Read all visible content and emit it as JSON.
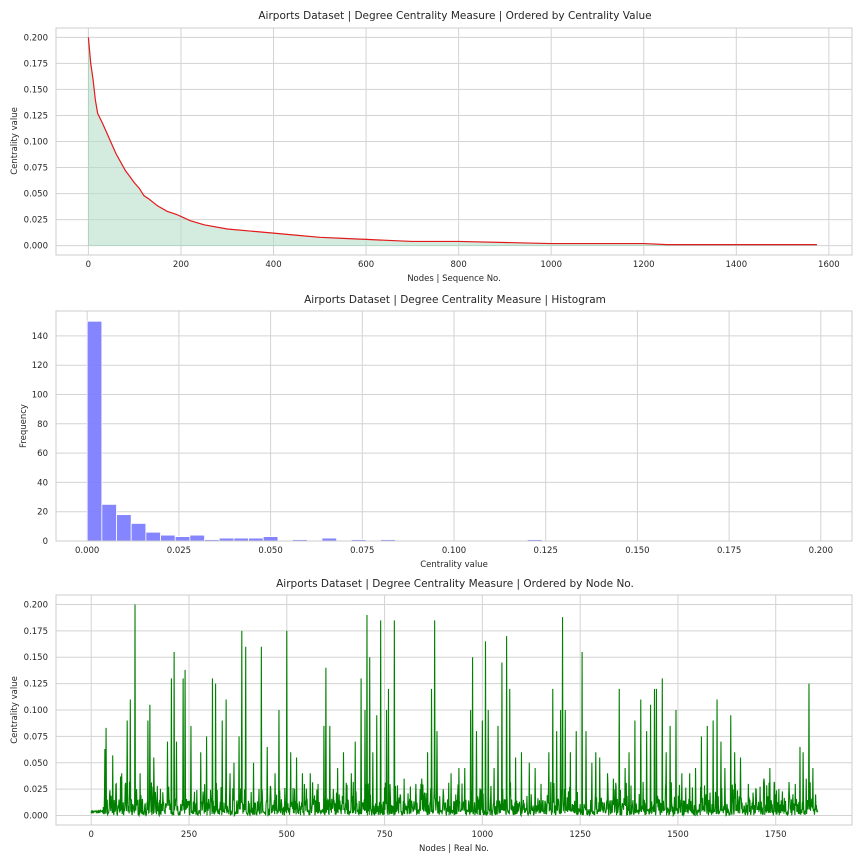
{
  "chart_data": [
    {
      "type": "area",
      "title": "Airports Dataset | Degree Centrality Measure | Ordered by Centrality Value",
      "xlabel": "Nodes | Sequence No.",
      "ylabel": "Centrality value",
      "xlim": [
        -70,
        1650
      ],
      "ylim": [
        -0.009,
        0.209
      ],
      "xticks": [
        "0",
        "200",
        "400",
        "600",
        "800",
        "1000",
        "1200",
        "1400",
        "1600"
      ],
      "yticks": [
        "0.000",
        "0.025",
        "0.050",
        "0.075",
        "0.100",
        "0.125",
        "0.150",
        "0.175",
        "0.200"
      ],
      "grid": true,
      "line_color": "#e31a1c",
      "fill_color": "#b8e0cc",
      "series": [
        {
          "x": [
            0,
            2,
            5,
            10,
            15,
            20,
            30,
            40,
            50,
            60,
            70,
            80,
            90,
            100,
            110,
            120,
            130,
            150,
            170,
            190,
            200,
            220,
            250,
            300,
            350,
            400,
            450,
            500,
            550,
            600,
            700,
            800,
            900,
            1000,
            1050,
            1100,
            1200,
            1250,
            1300,
            1400,
            1500,
            1574
          ],
          "y": [
            0.2,
            0.19,
            0.175,
            0.16,
            0.14,
            0.127,
            0.118,
            0.108,
            0.098,
            0.088,
            0.08,
            0.072,
            0.066,
            0.06,
            0.055,
            0.048,
            0.045,
            0.038,
            0.033,
            0.03,
            0.028,
            0.024,
            0.02,
            0.016,
            0.014,
            0.012,
            0.01,
            0.008,
            0.007,
            0.006,
            0.004,
            0.004,
            0.003,
            0.002,
            0.002,
            0.002,
            0.002,
            0.001,
            0.001,
            0.001,
            0.001,
            0.001
          ]
        }
      ]
    },
    {
      "type": "bar",
      "title": "Airports Dataset | Degree Centrality Measure | Histogram",
      "xlabel": "Centrality value",
      "ylabel": "Frequency",
      "xlim": [
        -0.0085,
        0.2085
      ],
      "ylim": [
        0,
        157
      ],
      "xticks": [
        "0.000",
        "0.025",
        "0.050",
        "0.075",
        "0.100",
        "0.125",
        "0.150",
        "0.175",
        "0.200"
      ],
      "yticks": [
        "0",
        "20",
        "40",
        "60",
        "80",
        "100",
        "120",
        "140"
      ],
      "grid": true,
      "bar_color": "#7b7bff",
      "bin_width": 0.004,
      "bins": [
        0.0,
        0.004,
        0.008,
        0.012,
        0.016,
        0.02,
        0.024,
        0.028,
        0.032,
        0.036,
        0.04,
        0.044,
        0.048,
        0.052,
        0.056,
        0.06,
        0.064,
        0.068,
        0.072,
        0.076,
        0.08,
        0.084,
        0.088,
        0.092,
        0.096,
        0.1,
        0.104,
        0.108,
        0.112,
        0.116,
        0.12,
        0.124,
        0.128,
        0.132,
        0.136,
        0.14,
        0.144,
        0.148,
        0.152,
        0.156,
        0.16,
        0.164,
        0.168,
        0.172,
        0.176,
        0.18,
        0.184,
        0.188,
        0.192,
        0.196
      ],
      "values": [
        150,
        25,
        18,
        12,
        6,
        4,
        3,
        4,
        1,
        2,
        2,
        2,
        3,
        0,
        1,
        0,
        2,
        0,
        1,
        0,
        1,
        0,
        0,
        0,
        0,
        0,
        0,
        0,
        0,
        0,
        1,
        0,
        0,
        0,
        0,
        0,
        0,
        0,
        0,
        0,
        0,
        0,
        0,
        0,
        0,
        0,
        0,
        0,
        0,
        0
      ]
    },
    {
      "type": "line",
      "title": "Airports Dataset | Degree Centrality Measure | Ordered by Node No.",
      "xlabel": "Nodes | Real No.",
      "ylabel": "Centrality value",
      "xlim": [
        -90,
        1945
      ],
      "ylim": [
        -0.009,
        0.209
      ],
      "xticks": [
        "0",
        "250",
        "500",
        "750",
        "1000",
        "1250",
        "1500",
        "1750"
      ],
      "yticks": [
        "0.000",
        "0.025",
        "0.050",
        "0.075",
        "0.100",
        "0.125",
        "0.150",
        "0.175",
        "0.200"
      ],
      "grid": true,
      "line_color": "#008000",
      "x_max": 1858,
      "peaks": [
        [
          35,
          0.063
        ],
        [
          38,
          0.083
        ],
        [
          55,
          0.057
        ],
        [
          75,
          0.037
        ],
        [
          78,
          0.04
        ],
        [
          92,
          0.09
        ],
        [
          100,
          0.11
        ],
        [
          112,
          0.2
        ],
        [
          125,
          0.04
        ],
        [
          145,
          0.09
        ],
        [
          150,
          0.105
        ],
        [
          160,
          0.055
        ],
        [
          195,
          0.07
        ],
        [
          205,
          0.13
        ],
        [
          212,
          0.155
        ],
        [
          218,
          0.07
        ],
        [
          235,
          0.13
        ],
        [
          240,
          0.138
        ],
        [
          255,
          0.085
        ],
        [
          280,
          0.06
        ],
        [
          295,
          0.075
        ],
        [
          310,
          0.13
        ],
        [
          318,
          0.125
        ],
        [
          335,
          0.09
        ],
        [
          345,
          0.11
        ],
        [
          355,
          0.04
        ],
        [
          365,
          0.05
        ],
        [
          378,
          0.075
        ],
        [
          385,
          0.175
        ],
        [
          395,
          0.16
        ],
        [
          415,
          0.05
        ],
        [
          435,
          0.16
        ],
        [
          450,
          0.065
        ],
        [
          470,
          0.04
        ],
        [
          480,
          0.1
        ],
        [
          500,
          0.175
        ],
        [
          510,
          0.06
        ],
        [
          525,
          0.055
        ],
        [
          540,
          0.04
        ],
        [
          560,
          0.04
        ],
        [
          580,
          0.03
        ],
        [
          595,
          0.085
        ],
        [
          600,
          0.14
        ],
        [
          610,
          0.085
        ],
        [
          630,
          0.045
        ],
        [
          645,
          0.06
        ],
        [
          665,
          0.04
        ],
        [
          675,
          0.07
        ],
        [
          690,
          0.13
        ],
        [
          700,
          0.1
        ],
        [
          705,
          0.19
        ],
        [
          712,
          0.15
        ],
        [
          720,
          0.06
        ],
        [
          730,
          0.095
        ],
        [
          740,
          0.185
        ],
        [
          755,
          0.1
        ],
        [
          760,
          0.12
        ],
        [
          775,
          0.185
        ],
        [
          790,
          0.02
        ],
        [
          800,
          0.035
        ],
        [
          810,
          0.02
        ],
        [
          830,
          0.03
        ],
        [
          845,
          0.035
        ],
        [
          860,
          0.06
        ],
        [
          870,
          0.12
        ],
        [
          878,
          0.185
        ],
        [
          884,
          0.08
        ],
        [
          900,
          0.025
        ],
        [
          920,
          0.04
        ],
        [
          940,
          0.045
        ],
        [
          955,
          0.045
        ],
        [
          970,
          0.1
        ],
        [
          975,
          0.15
        ],
        [
          985,
          0.08
        ],
        [
          1000,
          0.09
        ],
        [
          1008,
          0.165
        ],
        [
          1015,
          0.1
        ],
        [
          1030,
          0.045
        ],
        [
          1040,
          0.085
        ],
        [
          1050,
          0.145
        ],
        [
          1062,
          0.17
        ],
        [
          1070,
          0.12
        ],
        [
          1085,
          0.055
        ],
        [
          1100,
          0.06
        ],
        [
          1120,
          0.05
        ],
        [
          1135,
          0.045
        ],
        [
          1150,
          0.03
        ],
        [
          1170,
          0.06
        ],
        [
          1180,
          0.12
        ],
        [
          1190,
          0.08
        ],
        [
          1200,
          0.1
        ],
        [
          1205,
          0.188
        ],
        [
          1212,
          0.1
        ],
        [
          1225,
          0.06
        ],
        [
          1240,
          0.08
        ],
        [
          1255,
          0.155
        ],
        [
          1265,
          0.08
        ],
        [
          1280,
          0.05
        ],
        [
          1290,
          0.06
        ],
        [
          1300,
          0.055
        ],
        [
          1320,
          0.04
        ],
        [
          1335,
          0.035
        ],
        [
          1350,
          0.12
        ],
        [
          1365,
          0.045
        ],
        [
          1375,
          0.06
        ],
        [
          1390,
          0.09
        ],
        [
          1405,
          0.11
        ],
        [
          1420,
          0.08
        ],
        [
          1430,
          0.105
        ],
        [
          1440,
          0.12
        ],
        [
          1445,
          0.12
        ],
        [
          1460,
          0.13
        ],
        [
          1470,
          0.06
        ],
        [
          1480,
          0.085
        ],
        [
          1495,
          0.1
        ],
        [
          1510,
          0.04
        ],
        [
          1530,
          0.04
        ],
        [
          1545,
          0.045
        ],
        [
          1560,
          0.075
        ],
        [
          1575,
          0.085
        ],
        [
          1590,
          0.09
        ],
        [
          1600,
          0.11
        ],
        [
          1610,
          0.07
        ],
        [
          1620,
          0.045
        ],
        [
          1635,
          0.095
        ],
        [
          1645,
          0.06
        ],
        [
          1660,
          0.055
        ],
        [
          1680,
          0.03
        ],
        [
          1700,
          0.025
        ],
        [
          1720,
          0.035
        ],
        [
          1735,
          0.045
        ],
        [
          1750,
          0.02
        ],
        [
          1770,
          0.01
        ],
        [
          1785,
          0.02
        ],
        [
          1800,
          0.03
        ],
        [
          1812,
          0.065
        ],
        [
          1820,
          0.06
        ],
        [
          1828,
          0.035
        ],
        [
          1835,
          0.125
        ],
        [
          1845,
          0.045
        ],
        [
          1852,
          0.02
        ]
      ]
    }
  ]
}
